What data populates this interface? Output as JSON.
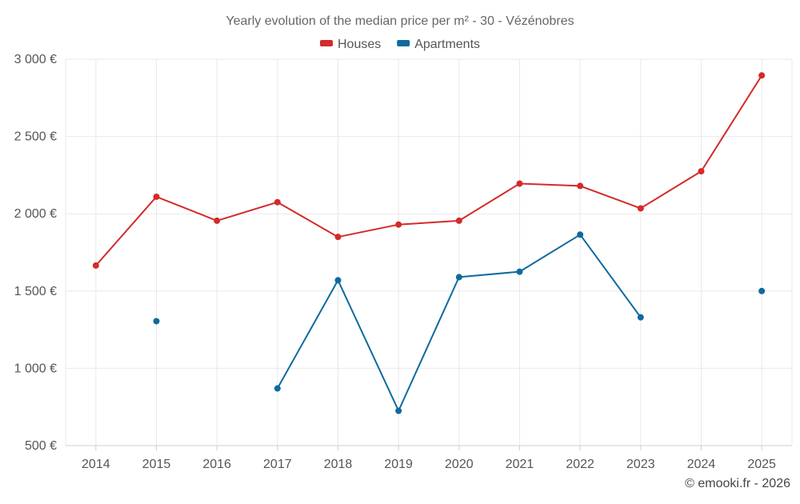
{
  "chart_data": {
    "type": "line",
    "title": "Yearly evolution of the median price per m² - 30 - Vézénobres",
    "categories": [
      "2014",
      "2015",
      "2016",
      "2017",
      "2018",
      "2019",
      "2020",
      "2021",
      "2022",
      "2023",
      "2024",
      "2025"
    ],
    "ylim": [
      500,
      3000
    ],
    "yticks": [
      500,
      1000,
      1500,
      2000,
      2500,
      3000
    ],
    "ytick_labels": [
      "500 €",
      "1 000 €",
      "1 500 €",
      "2 000 €",
      "2 500 €",
      "3 000 €"
    ],
    "grid": true,
    "legend_position": "top-center",
    "series": [
      {
        "name": "Houses",
        "color": "#d42a2a",
        "values": [
          1665,
          2110,
          1955,
          2075,
          1850,
          1930,
          1955,
          2195,
          2180,
          2035,
          2275,
          2895
        ]
      },
      {
        "name": "Apartments",
        "color": "#0e6a9e",
        "values": [
          null,
          1305,
          null,
          870,
          1570,
          725,
          1590,
          1625,
          1865,
          1330,
          null,
          1500
        ]
      }
    ],
    "credit": "© emooki.fr - 2026"
  }
}
